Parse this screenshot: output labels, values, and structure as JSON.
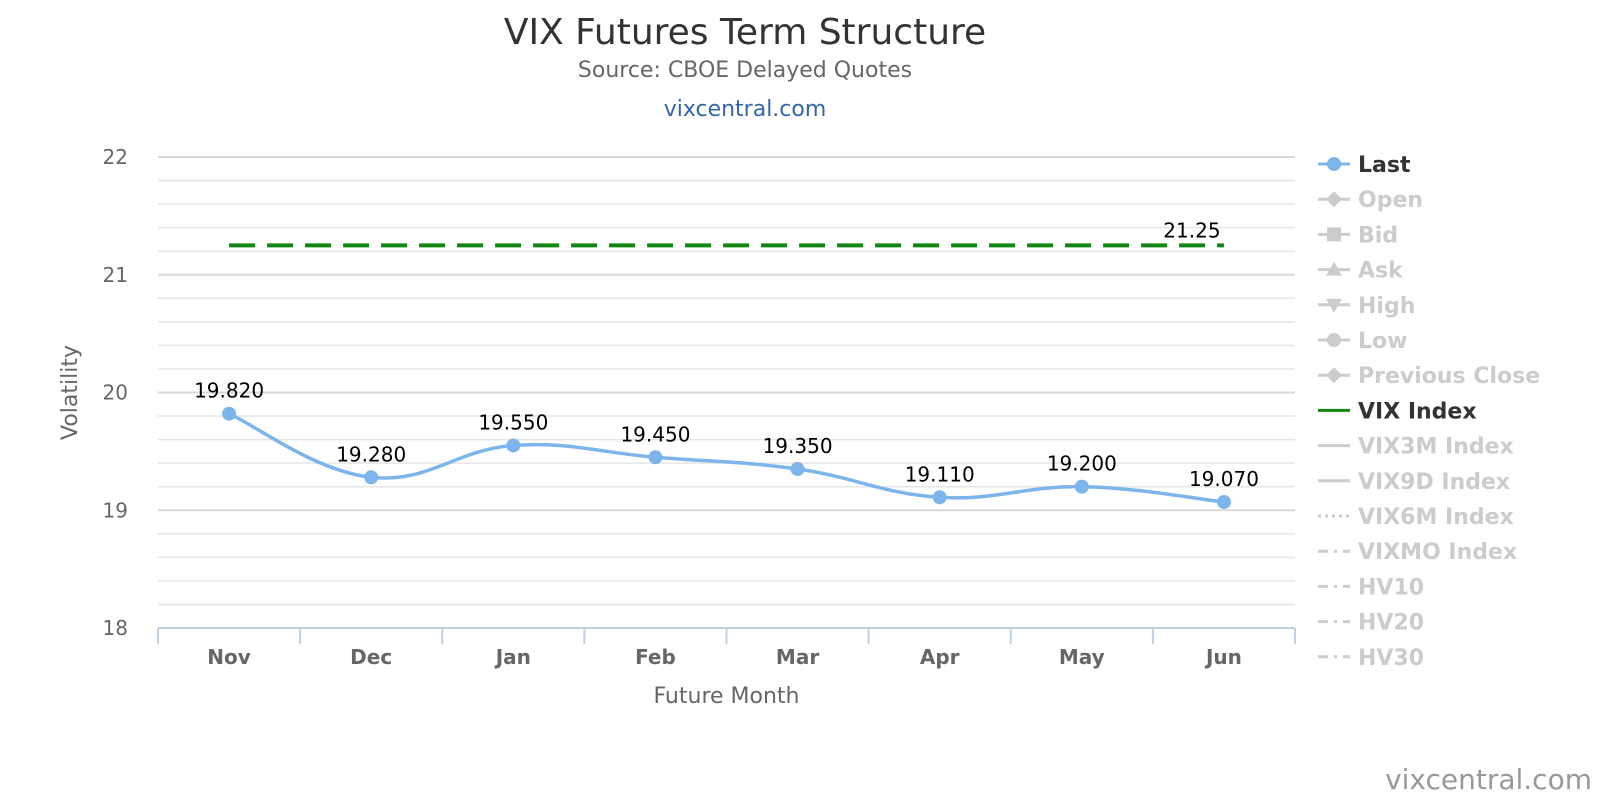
{
  "chart_data": {
    "type": "line",
    "title": "VIX Futures Term Structure",
    "subtitle": "Source: CBOE Delayed Quotes",
    "link_text": "vixcentral.com",
    "credit": "vixcentral.com",
    "xlabel": "Future Month",
    "ylabel": "Volatility",
    "categories": [
      "Nov",
      "Dec",
      "Jan",
      "Feb",
      "Mar",
      "Apr",
      "May",
      "Jun"
    ],
    "ylim": [
      18,
      22
    ],
    "yticks": [
      18,
      19,
      20,
      21,
      22
    ],
    "grid": true,
    "legend_position": "right",
    "series": [
      {
        "name": "Last",
        "values": [
          19.82,
          19.28,
          19.55,
          19.45,
          19.35,
          19.11,
          19.2,
          19.07
        ],
        "labels": [
          "19.820",
          "19.280",
          "19.550",
          "19.450",
          "19.350",
          "19.110",
          "19.200",
          "19.070"
        ],
        "color": "#7cb5ec",
        "smooth": true
      },
      {
        "name": "VIX Index",
        "values": [
          21.25,
          21.25,
          21.25,
          21.25,
          21.25,
          21.25,
          21.25,
          21.25
        ],
        "end_label": "21.25",
        "color": "#118811",
        "dashed": true
      }
    ],
    "legend": [
      {
        "name": "Last",
        "symbol": "circle",
        "line": "solid",
        "active": true,
        "color": "#7cb5ec"
      },
      {
        "name": "Open",
        "symbol": "diamond",
        "line": "solid",
        "active": false
      },
      {
        "name": "Bid",
        "symbol": "square",
        "line": "solid",
        "active": false
      },
      {
        "name": "Ask",
        "symbol": "triangle",
        "line": "solid",
        "active": false
      },
      {
        "name": "High",
        "symbol": "triangle-down",
        "line": "solid",
        "active": false
      },
      {
        "name": "Low",
        "symbol": "circle",
        "line": "solid",
        "active": false
      },
      {
        "name": "Previous Close",
        "symbol": "diamond",
        "line": "solid",
        "active": false
      },
      {
        "name": "VIX Index",
        "symbol": "none",
        "line": "solid",
        "active": true,
        "color": "#118811"
      },
      {
        "name": "VIX3M Index",
        "symbol": "none",
        "line": "solid",
        "active": false
      },
      {
        "name": "VIX9D Index",
        "symbol": "none",
        "line": "solid",
        "active": false
      },
      {
        "name": "VIX6M Index",
        "symbol": "none",
        "line": "dotted",
        "active": false
      },
      {
        "name": "VIXMO Index",
        "symbol": "none",
        "line": "dashdot",
        "active": false
      },
      {
        "name": "HV10",
        "symbol": "none",
        "line": "dashdot",
        "active": false
      },
      {
        "name": "HV20",
        "symbol": "none",
        "line": "dashdot",
        "active": false
      },
      {
        "name": "HV30",
        "symbol": "none",
        "line": "dashdot",
        "active": false
      }
    ]
  }
}
